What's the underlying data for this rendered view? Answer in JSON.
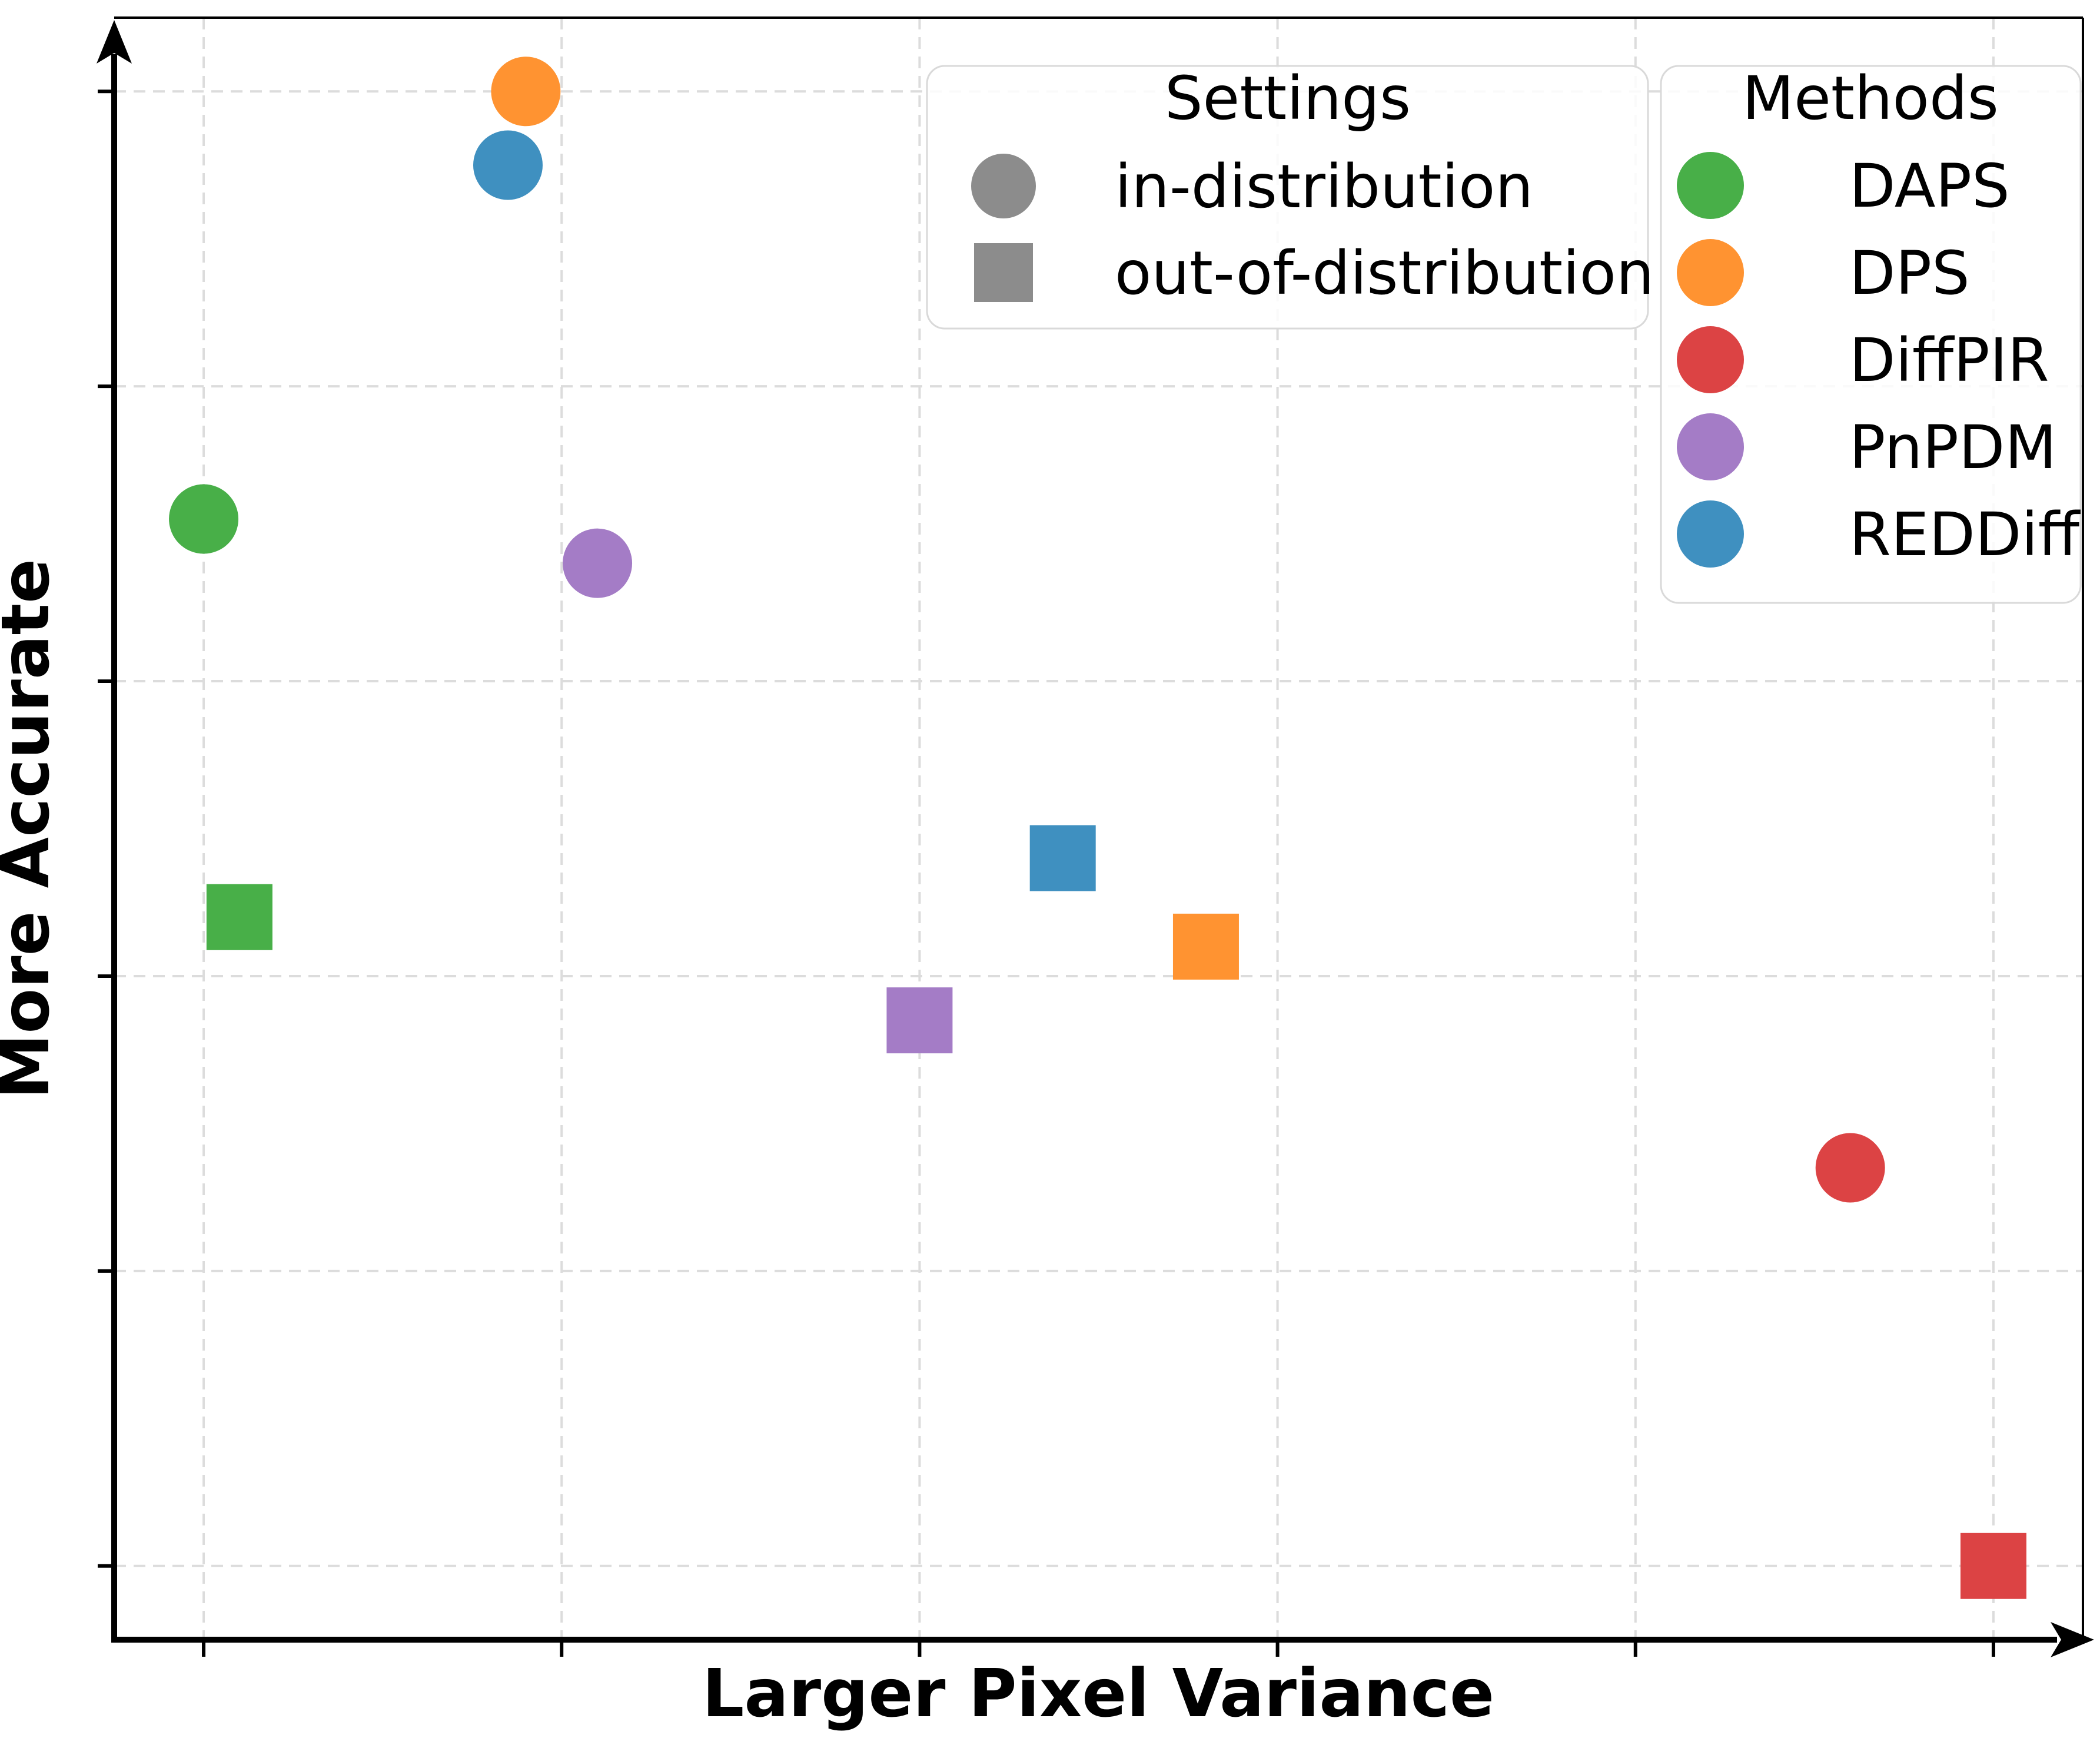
{
  "figure": {
    "background": "#ffffff",
    "plot_background": "#ffffff",
    "grid_color": "#dcdcdc",
    "axis_color": "#000000",
    "legend_border_color": "#d9d9d9",
    "legend_background": "#ffffff"
  },
  "chart_data": {
    "type": "scatter",
    "title": "",
    "xlabel": "Larger Pixel Variance",
    "ylabel": "More Accurate",
    "axis_tick_labels": "none",
    "axis_arrows": [
      "x-right-arrow",
      "y-up-arrow"
    ],
    "grid": "dashed",
    "xlim": [
      -0.5,
      10.5
    ],
    "ylim": [
      -0.5,
      10.5
    ],
    "xticks": [
      0,
      2,
      4,
      6,
      8,
      10
    ],
    "yticks": [
      0,
      2,
      4,
      6,
      8,
      10
    ],
    "legends": {
      "settings_title": "Settings",
      "settings_marker_color": "#8c8c8c",
      "settings_items": [
        {
          "label": "in-distribution",
          "marker": "circle"
        },
        {
          "label": "out-of-distribution",
          "marker": "square"
        }
      ],
      "methods_title": "Methods"
    },
    "series": [
      {
        "name": "DAPS",
        "color": "#48af48",
        "points": [
          {
            "setting": "in-distribution",
            "marker": "circle",
            "x": 0.0,
            "y": 7.1
          },
          {
            "setting": "out-of-distribution",
            "marker": "square",
            "x": 0.2,
            "y": 4.4
          }
        ]
      },
      {
        "name": "DPS",
        "color": "#ff9331",
        "points": [
          {
            "setting": "in-distribution",
            "marker": "circle",
            "x": 1.8,
            "y": 10.0
          },
          {
            "setting": "out-of-distribution",
            "marker": "square",
            "x": 5.6,
            "y": 4.2
          }
        ]
      },
      {
        "name": "DiffPIR",
        "color": "#dc4344",
        "points": [
          {
            "setting": "in-distribution",
            "marker": "circle",
            "x": 9.2,
            "y": 2.7
          },
          {
            "setting": "out-of-distribution",
            "marker": "square",
            "x": 10.0,
            "y": 0.0
          }
        ]
      },
      {
        "name": "PnPDM",
        "color": "#a47cc6",
        "points": [
          {
            "setting": "in-distribution",
            "marker": "circle",
            "x": 2.2,
            "y": 6.8
          },
          {
            "setting": "out-of-distribution",
            "marker": "square",
            "x": 4.0,
            "y": 3.7
          }
        ]
      },
      {
        "name": "REDDiff",
        "color": "#3f90c0",
        "points": [
          {
            "setting": "in-distribution",
            "marker": "circle",
            "x": 1.7,
            "y": 9.5
          },
          {
            "setting": "out-of-distribution",
            "marker": "square",
            "x": 4.8,
            "y": 4.8
          }
        ]
      }
    ]
  }
}
